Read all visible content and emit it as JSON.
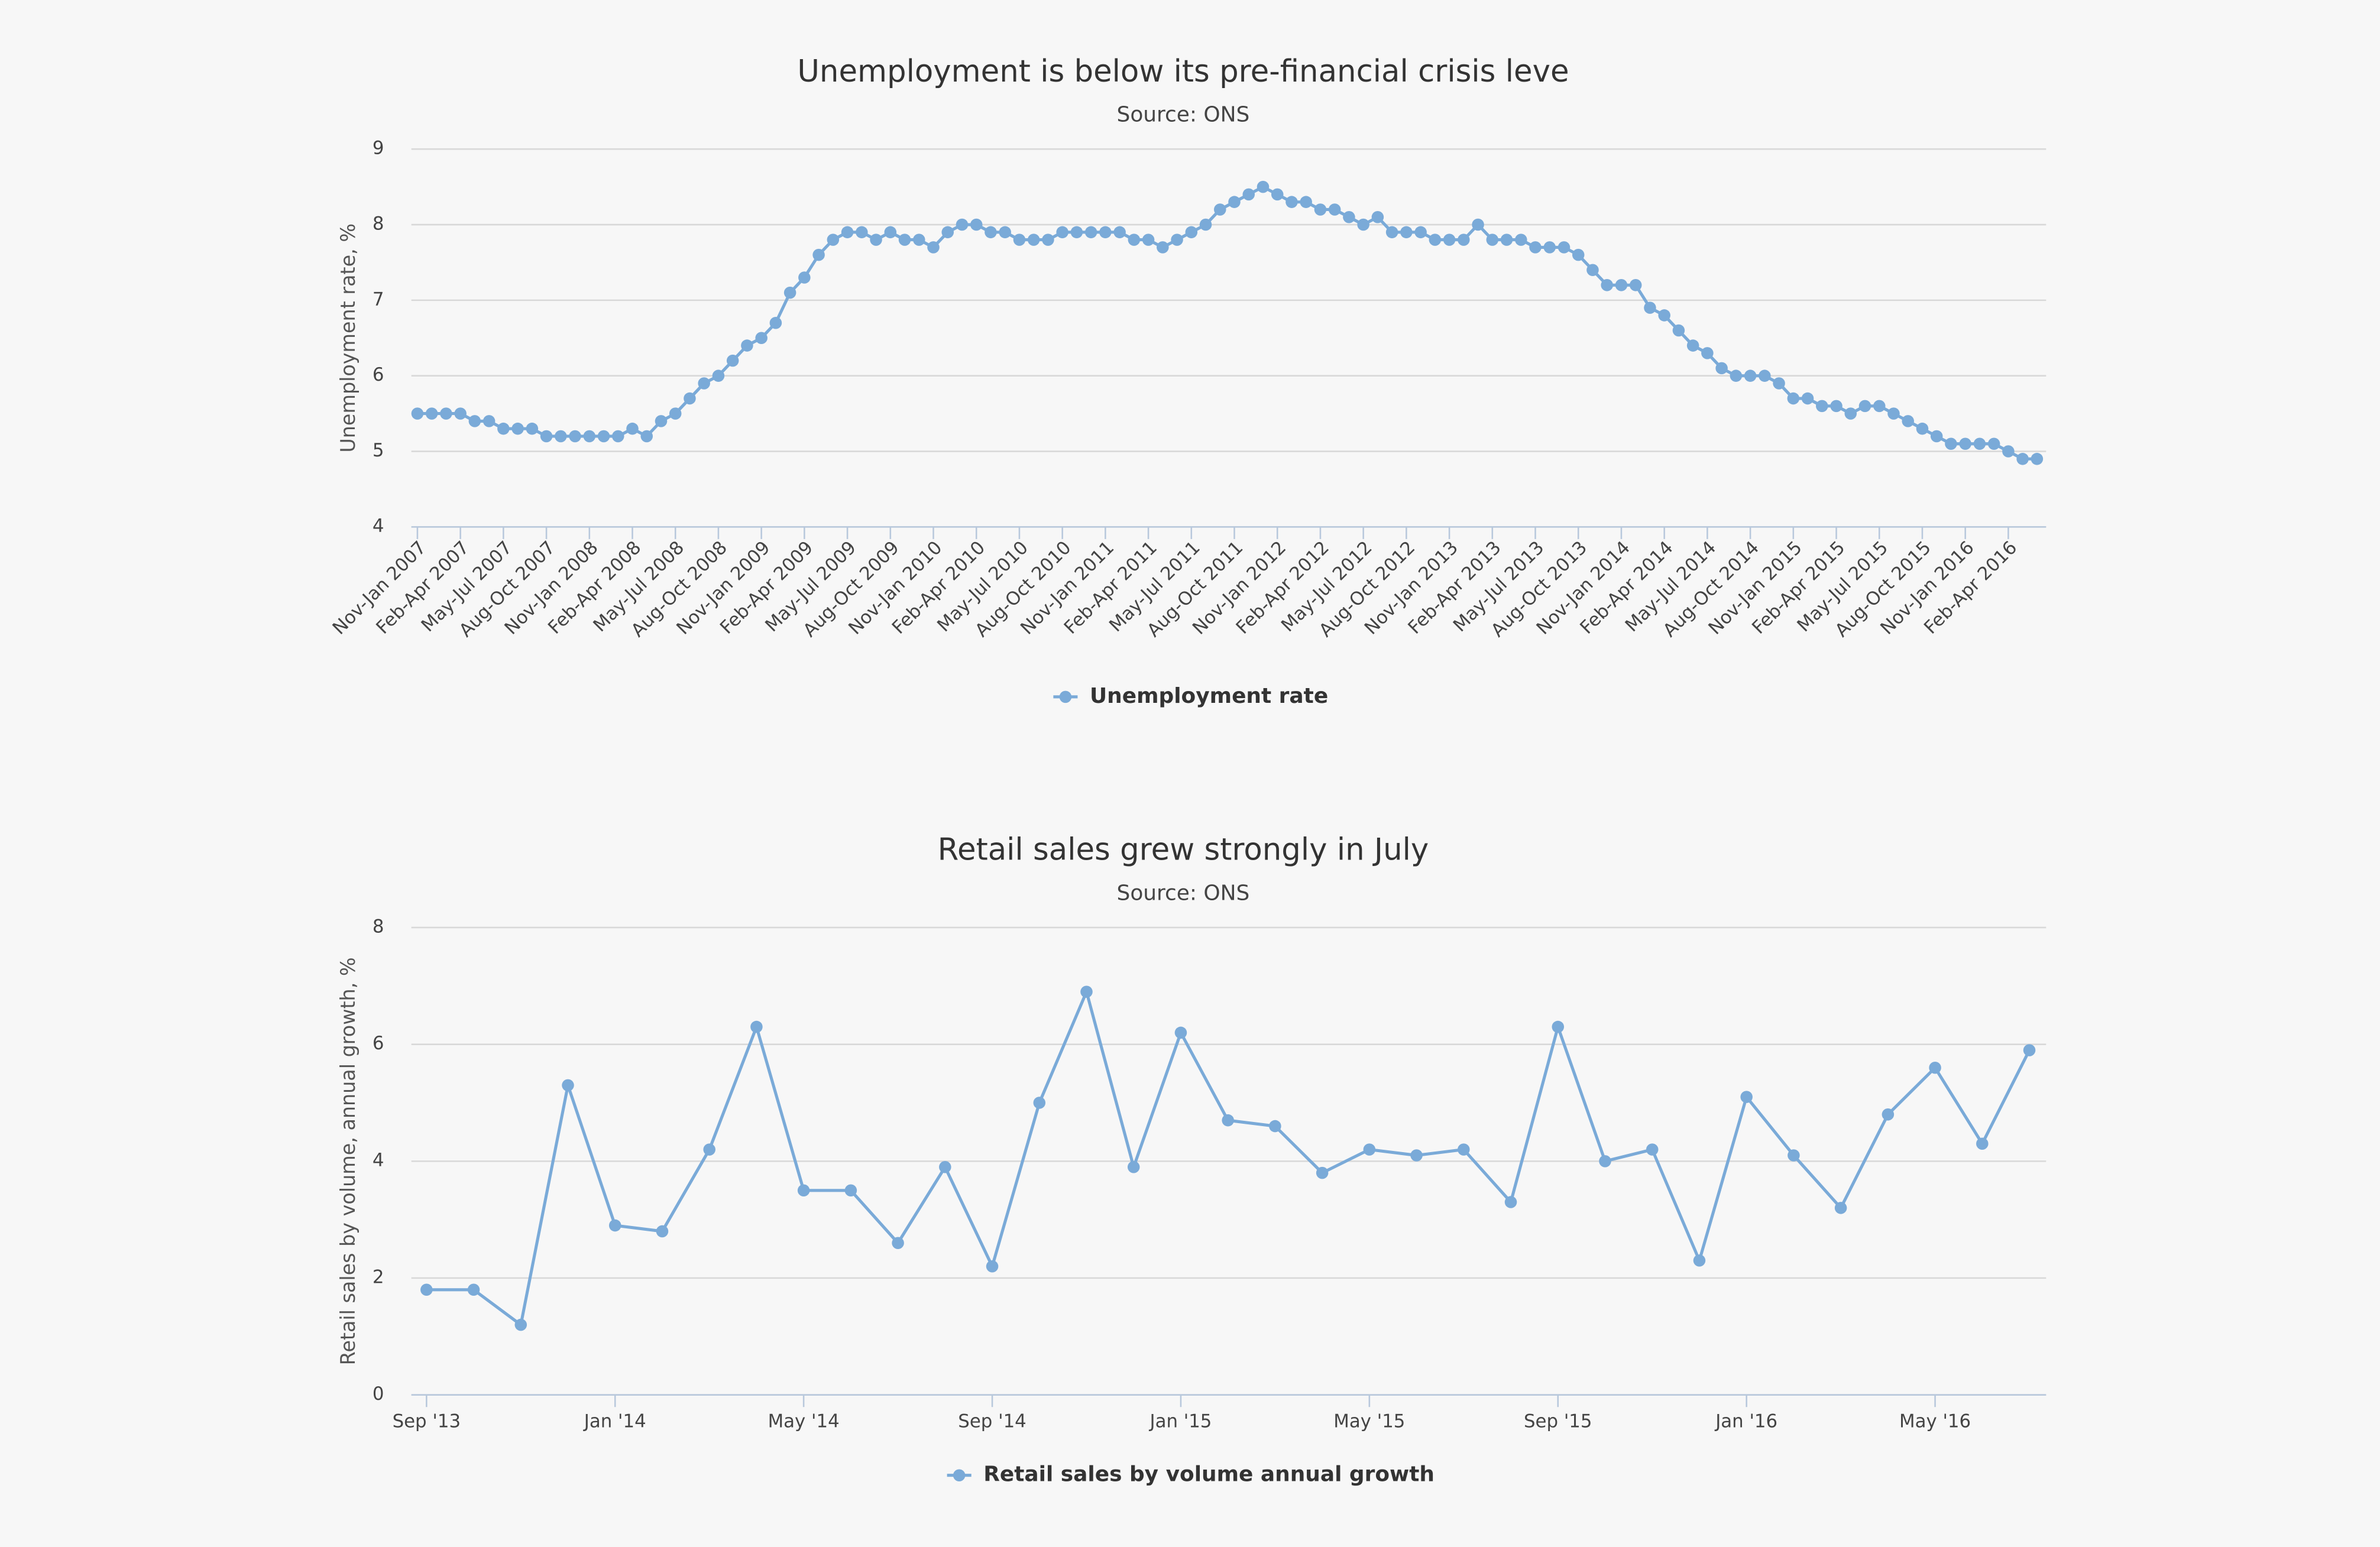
{
  "chart_data": [
    {
      "type": "line",
      "title": "Unemployment is below its pre-financial crisis leve",
      "subtitle": "Source: ONS",
      "y_label": "Unemployment rate, %",
      "categories": [
        "Nov-Jan 2007",
        null,
        null,
        "Feb-Apr 2007",
        null,
        null,
        "May-Jul 2007",
        null,
        null,
        "Aug-Oct 2007",
        null,
        null,
        "Nov-Jan 2008",
        null,
        null,
        "Feb-Apr 2008",
        null,
        null,
        "May-Jul 2008",
        null,
        null,
        "Aug-Oct 2008",
        null,
        null,
        "Nov-Jan 2009",
        null,
        null,
        "Feb-Apr 2009",
        null,
        null,
        "May-Jul 2009",
        null,
        null,
        "Aug-Oct 2009",
        null,
        null,
        "Nov-Jan 2010",
        null,
        null,
        "Feb-Apr 2010",
        null,
        null,
        "May-Jul 2010",
        null,
        null,
        "Aug-Oct 2010",
        null,
        null,
        "Nov-Jan 2011",
        null,
        null,
        "Feb-Apr 2011",
        null,
        null,
        "May-Jul 2011",
        null,
        null,
        "Aug-Oct 2011",
        null,
        null,
        "Nov-Jan 2012",
        null,
        null,
        "Feb-Apr 2012",
        null,
        null,
        "May-Jul 2012",
        null,
        null,
        "Aug-Oct 2012",
        null,
        null,
        "Nov-Jan 2013",
        null,
        null,
        "Feb-Apr 2013",
        null,
        null,
        "May-Jul 2013",
        null,
        null,
        "Aug-Oct 2013",
        null,
        null,
        "Nov-Jan 2014",
        null,
        null,
        "Feb-Apr 2014",
        null,
        null,
        "May-Jul 2014",
        null,
        null,
        "Aug-Oct 2014",
        null,
        null,
        "Nov-Jan 2015",
        null,
        null,
        "Feb-Apr 2015",
        null,
        null,
        "May-Jul 2015",
        null,
        null,
        "Aug-Oct 2015",
        null,
        null,
        "Nov-Jan 2016",
        null,
        null,
        "Feb-Apr 2016",
        null,
        null
      ],
      "series": [
        {
          "name": "Unemployment rate",
          "color": "#7aaad8",
          "values": [
            5.5,
            5.5,
            5.5,
            5.5,
            5.4,
            5.4,
            5.3,
            5.3,
            5.3,
            5.2,
            5.2,
            5.2,
            5.2,
            5.2,
            5.2,
            5.3,
            5.2,
            5.4,
            5.5,
            5.7,
            5.9,
            6.0,
            6.2,
            6.4,
            6.5,
            6.7,
            7.1,
            7.3,
            7.6,
            7.8,
            7.9,
            7.9,
            7.8,
            7.9,
            7.8,
            7.8,
            7.7,
            7.9,
            8.0,
            8.0,
            7.9,
            7.9,
            7.8,
            7.8,
            7.8,
            7.9,
            7.9,
            7.9,
            7.9,
            7.9,
            7.8,
            7.8,
            7.7,
            7.8,
            7.9,
            8.0,
            8.2,
            8.3,
            8.4,
            8.5,
            8.4,
            8.3,
            8.3,
            8.2,
            8.2,
            8.1,
            8.0,
            8.1,
            7.9,
            7.9,
            7.9,
            7.8,
            7.8,
            7.8,
            8.0,
            7.8,
            7.8,
            7.8,
            7.7,
            7.7,
            7.7,
            7.6,
            7.4,
            7.2,
            7.2,
            7.2,
            6.9,
            6.8,
            6.6,
            6.4,
            6.3,
            6.1,
            6.0,
            6.0,
            6.0,
            5.9,
            5.7,
            5.7,
            5.6,
            5.6,
            5.5,
            5.6,
            5.6,
            5.5,
            5.4,
            5.3,
            5.2,
            5.1,
            5.1,
            5.1,
            5.1,
            5.0,
            4.9,
            4.9
          ]
        }
      ],
      "ylim": [
        4,
        9
      ],
      "yticks": [
        4,
        5,
        6,
        7,
        8,
        9
      ],
      "grid": true,
      "legend": "bottom"
    },
    {
      "type": "line",
      "title": "Retail sales grew strongly in July",
      "subtitle": "Source: ONS",
      "y_label": "Retail sales by volume, annual growth, %",
      "categories": [
        "Sep '13",
        null,
        null,
        null,
        "Jan '14",
        null,
        null,
        null,
        "May '14",
        null,
        null,
        null,
        "Sep '14",
        null,
        null,
        null,
        "Jan '15",
        null,
        null,
        null,
        "May '15",
        null,
        null,
        null,
        "Sep '15",
        null,
        null,
        null,
        "Jan '16",
        null,
        null,
        null,
        "May '16",
        null,
        null
      ],
      "series": [
        {
          "name": "Retail sales by volume annual growth",
          "color": "#7aaad8",
          "values": [
            1.8,
            1.8,
            1.2,
            5.3,
            2.9,
            2.8,
            4.2,
            6.3,
            3.5,
            3.5,
            2.6,
            3.9,
            2.2,
            5.0,
            6.9,
            3.9,
            6.2,
            4.7,
            4.6,
            3.8,
            4.2,
            4.1,
            4.2,
            3.3,
            6.3,
            4.0,
            4.2,
            2.3,
            5.1,
            4.1,
            3.2,
            4.8,
            5.6,
            4.3,
            5.9
          ]
        }
      ],
      "ylim": [
        0,
        8
      ],
      "yticks": [
        0,
        2,
        4,
        6,
        8
      ],
      "grid": true,
      "legend": "bottom"
    }
  ]
}
